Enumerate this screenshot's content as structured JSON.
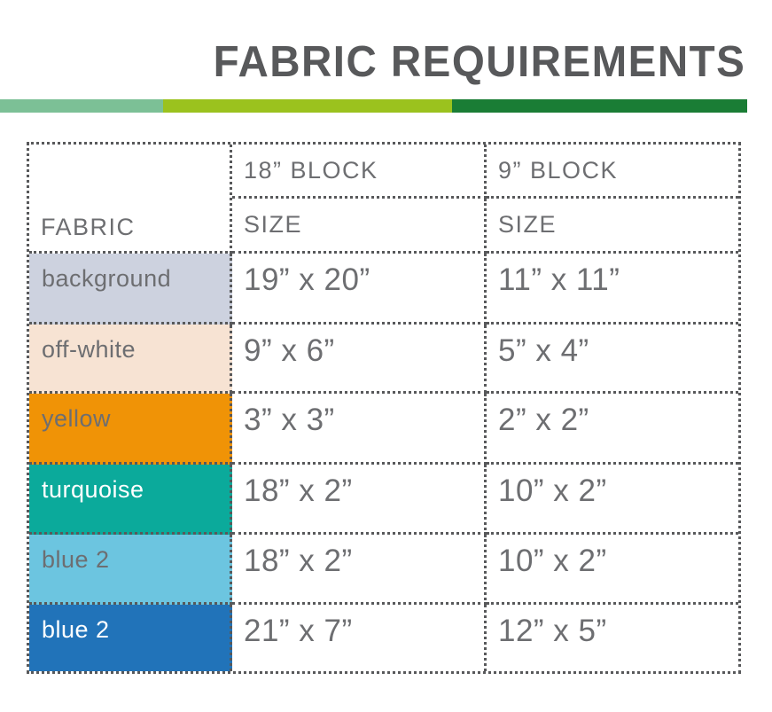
{
  "title": "FABRIC REQUIREMENTS",
  "accent_bar": {
    "segments": [
      {
        "name": "sage-green",
        "color": "#7cc096"
      },
      {
        "name": "lime-green",
        "color": "#9bc21e"
      },
      {
        "name": "dark-green",
        "color": "#1a7d35"
      }
    ]
  },
  "table": {
    "border_color": "#58595b",
    "text_color": "#6d6e71",
    "fabric_header": "FABRIC",
    "col18": {
      "block": "18” BLOCK",
      "size": "SIZE"
    },
    "col9": {
      "block": "9” BLOCK",
      "size": "SIZE"
    },
    "rows": [
      {
        "fabric": "background",
        "swatch": "#cdd2df",
        "text_color": "#6d6e71",
        "size18": "19” x 20”",
        "size9": "11” x 11”"
      },
      {
        "fabric": "off-white",
        "swatch": "#f7e3d3",
        "text_color": "#6d6e71",
        "size18": "9” x 6”",
        "size9": "5” x 4”"
      },
      {
        "fabric": "yellow",
        "swatch": "#f09306",
        "text_color": "#6d6e71",
        "size18": "3” x 3”",
        "size9": "2” x 2”"
      },
      {
        "fabric": "turquoise",
        "swatch": "#0baa9b",
        "text_color": "#ffffff",
        "size18": "18” x 2”",
        "size9": "10” x 2”"
      },
      {
        "fabric": "blue 2",
        "swatch": "#6cc5e0",
        "text_color": "#6d6e71",
        "size18": "18” x 2”",
        "size9": "10” x 2”"
      },
      {
        "fabric": "blue 2",
        "swatch": "#2173b9",
        "text_color": "#ffffff",
        "size18": "21” x 7”",
        "size9": "12” x 5”"
      }
    ]
  }
}
